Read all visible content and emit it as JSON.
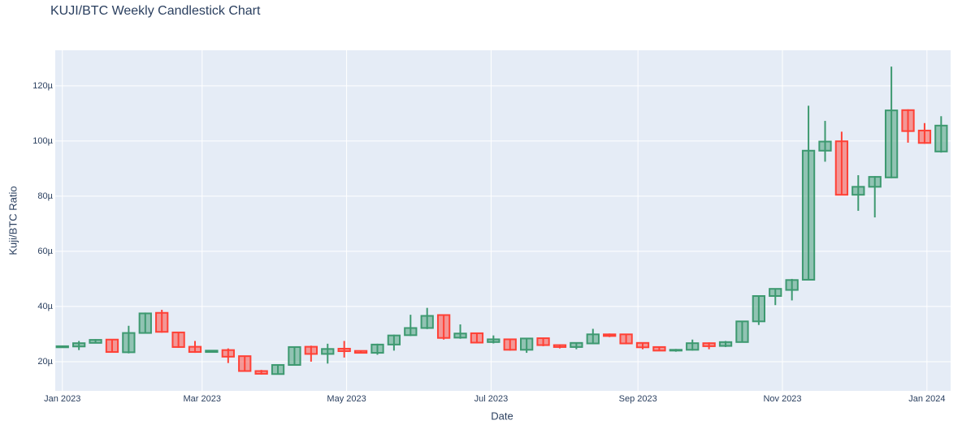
{
  "chart_data": {
    "type": "candlestick",
    "title": "KUJI/BTC Weekly Candlestick Chart",
    "x_label": "Date",
    "y_label": "Kuji/BTC Ratio",
    "x": [
      "2023-01-01",
      "2023-01-08",
      "2023-01-15",
      "2023-01-22",
      "2023-01-29",
      "2023-02-05",
      "2023-02-12",
      "2023-02-19",
      "2023-02-26",
      "2023-03-05",
      "2023-03-12",
      "2023-03-19",
      "2023-03-26",
      "2023-04-02",
      "2023-04-09",
      "2023-04-16",
      "2023-04-23",
      "2023-04-30",
      "2023-05-07",
      "2023-05-14",
      "2023-05-21",
      "2023-05-28",
      "2023-06-04",
      "2023-06-11",
      "2023-06-18",
      "2023-06-25",
      "2023-07-02",
      "2023-07-09",
      "2023-07-16",
      "2023-07-23",
      "2023-07-30",
      "2023-08-06",
      "2023-08-13",
      "2023-08-20",
      "2023-08-27",
      "2023-09-03",
      "2023-09-10",
      "2023-09-17",
      "2023-09-24",
      "2023-10-01",
      "2023-10-08",
      "2023-10-15",
      "2023-10-22",
      "2023-10-29",
      "2023-11-05",
      "2023-11-12",
      "2023-11-19",
      "2023-11-26",
      "2023-12-03",
      "2023-12-10",
      "2023-12-17",
      "2023-12-24",
      "2023-12-31",
      "2024-01-07"
    ],
    "open": [
      2.52e-05,
      2.55e-05,
      2.68e-05,
      2.8e-05,
      2.34e-05,
      3.04e-05,
      3.77e-05,
      3.06e-05,
      2.54e-05,
      2.35e-05,
      2.42e-05,
      2.2e-05,
      1.66e-05,
      1.55e-05,
      1.88e-05,
      2.54e-05,
      2.28e-05,
      2.47e-05,
      2.39e-05,
      2.32e-05,
      2.62e-05,
      2.96e-05,
      3.22e-05,
      3.69e-05,
      2.87e-05,
      3.03e-05,
      2.71e-05,
      2.81e-05,
      2.43e-05,
      2.85e-05,
      2.6e-05,
      2.53e-05,
      2.66e-05,
      2.99e-05,
      2.99e-05,
      2.68e-05,
      2.53e-05,
      2.4e-05,
      2.43e-05,
      2.67e-05,
      2.57e-05,
      2.71e-05,
      3.46e-05,
      4.38e-05,
      4.6e-05,
      4.97e-05,
      9.65e-05,
      9.99e-05,
      8.05e-05,
      8.34e-05,
      8.68e-05,
      0.0001112,
      0.0001038,
      9.62e-05
    ],
    "high": [
      2.58e-05,
      2.75e-05,
      2.82e-05,
      2.82e-05,
      3.3e-05,
      3.78e-05,
      3.88e-05,
      3.08e-05,
      2.75e-05,
      2.42e-05,
      2.48e-05,
      2.22e-05,
      1.7e-05,
      1.9e-05,
      2.55e-05,
      2.58e-05,
      2.65e-05,
      2.75e-05,
      2.4e-05,
      2.65e-05,
      2.98e-05,
      3.7e-05,
      3.95e-05,
      3.7e-05,
      3.35e-05,
      3.05e-05,
      2.95e-05,
      2.83e-05,
      2.86e-05,
      2.87e-05,
      2.63e-05,
      2.7e-05,
      3.19e-05,
      3.02e-05,
      3.01e-05,
      2.7e-05,
      2.55e-05,
      2.46e-05,
      2.8e-05,
      2.7e-05,
      2.75e-05,
      3.48e-05,
      4.4e-05,
      4.66e-05,
      5e-05,
      0.0001128,
      0.0001073,
      0.0001034,
      8.76e-05,
      8.73e-05,
      0.000127,
      0.0001115,
      0.0001065,
      0.000109
    ],
    "low": [
      2.5e-05,
      2.42e-05,
      2.66e-05,
      2.33e-05,
      2.3e-05,
      3.02e-05,
      3.05e-05,
      2.5e-05,
      2.32e-05,
      2.33e-05,
      1.95e-05,
      1.64e-05,
      1.53e-05,
      1.53e-05,
      1.86e-05,
      2e-05,
      1.93e-05,
      2.15e-05,
      2.3e-05,
      2.25e-05,
      2.4e-05,
      2.93e-05,
      3.18e-05,
      2.8e-05,
      2.83e-05,
      2.66e-05,
      2.66e-05,
      2.4e-05,
      2.32e-05,
      2.56e-05,
      2.48e-05,
      2.45e-05,
      2.63e-05,
      2.89e-05,
      2.63e-05,
      2.45e-05,
      2.38e-05,
      2.36e-05,
      2.4e-05,
      2.45e-05,
      2.53e-05,
      2.7e-05,
      3.33e-05,
      4.05e-05,
      4.22e-05,
      4.95e-05,
      9.25e-05,
      8.03e-05,
      7.47e-05,
      7.23e-05,
      8.65e-05,
      9.94e-05,
      9.9e-05,
      9.58e-05
    ],
    "close": [
      2.56e-05,
      2.67e-05,
      2.79e-05,
      2.35e-05,
      3.04e-05,
      3.75e-05,
      3.08e-05,
      2.53e-05,
      2.35e-05,
      2.4e-05,
      2.18e-05,
      1.66e-05,
      1.56e-05,
      1.88e-05,
      2.53e-05,
      2.28e-05,
      2.46e-05,
      2.38e-05,
      2.32e-05,
      2.62e-05,
      2.95e-05,
      3.22e-05,
      3.66e-05,
      2.86e-05,
      3.02e-05,
      2.69e-05,
      2.81e-05,
      2.43e-05,
      2.84e-05,
      2.6e-05,
      2.53e-05,
      2.68e-05,
      2.99e-05,
      2.93e-05,
      2.66e-05,
      2.52e-05,
      2.4e-05,
      2.43e-05,
      2.67e-05,
      2.56e-05,
      2.71e-05,
      3.46e-05,
      4.38e-05,
      4.64e-05,
      4.96e-05,
      9.65e-05,
      9.98e-05,
      8.05e-05,
      8.34e-05,
      8.7e-05,
      0.0001111,
      0.0001036,
      9.93e-05,
      0.0001056
    ],
    "increasing_color": "#3D9970",
    "decreasing_color": "#FF4136",
    "xlim": [
      "2022-12-29",
      "2024-01-11"
    ],
    "xticks": [
      {
        "value": "2023-01-01",
        "label": "Jan 2023"
      },
      {
        "value": "2023-03-01",
        "label": "Mar 2023"
      },
      {
        "value": "2023-05-01",
        "label": "May 2023"
      },
      {
        "value": "2023-07-01",
        "label": "Jul 2023"
      },
      {
        "value": "2023-09-01",
        "label": "Sep 2023"
      },
      {
        "value": "2023-11-01",
        "label": "Nov 2023"
      },
      {
        "value": "2024-01-01",
        "label": "Jan 2024"
      }
    ],
    "ylim": [
      9.4e-06,
      0.0001329
    ],
    "yticks": [
      {
        "value": 2e-05,
        "label": "20µ"
      },
      {
        "value": 4e-05,
        "label": "40µ"
      },
      {
        "value": 6e-05,
        "label": "60µ"
      },
      {
        "value": 8e-05,
        "label": "80µ"
      },
      {
        "value": 0.0001,
        "label": "100µ"
      },
      {
        "value": 0.00012,
        "label": "120µ"
      }
    ],
    "grid": true
  }
}
